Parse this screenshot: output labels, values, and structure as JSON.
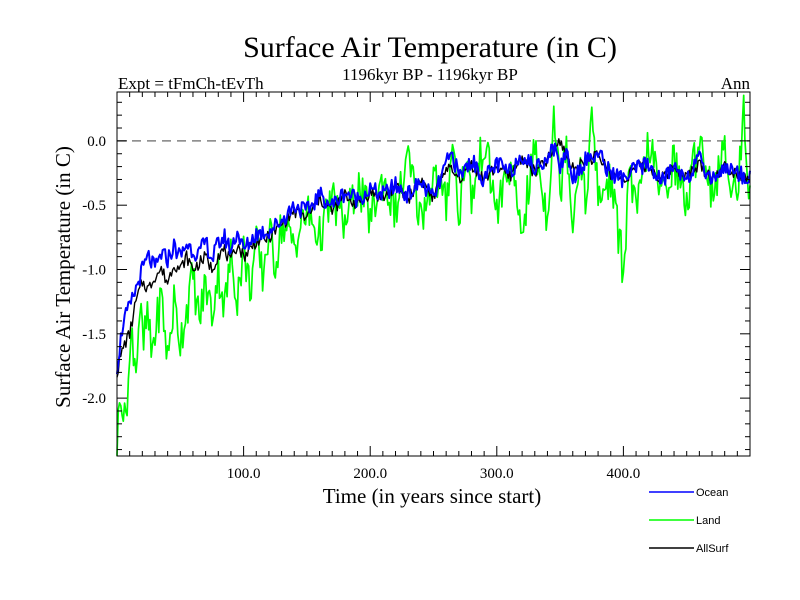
{
  "chart_data": {
    "type": "line",
    "title": "Surface Air Temperature (in C)",
    "subtitle_left": "Expt = tFmCh-tEvTh",
    "subtitle_center": "1196kyr BP - 1196kyr BP",
    "subtitle_right": "Ann",
    "xlabel": "Time (in years since start)",
    "ylabel": "Surface Air Temperature (in C)",
    "xlim": [
      0,
      500
    ],
    "ylim": [
      -2.45,
      0.38
    ],
    "xticks": [
      {
        "value": 100,
        "label": "100.0"
      },
      {
        "value": 200,
        "label": "200.0"
      },
      {
        "value": 300,
        "label": "300.0"
      },
      {
        "value": 400,
        "label": "400.0"
      }
    ],
    "yticks": [
      {
        "value": 0.0,
        "label": "0.0"
      },
      {
        "value": -0.5,
        "label": "-0.5"
      },
      {
        "value": -1.0,
        "label": "-1.0"
      },
      {
        "value": -1.5,
        "label": "-1.5"
      },
      {
        "value": -2.0,
        "label": "-2.0"
      }
    ],
    "reference_line": {
      "value": 0.0,
      "style": "dashed",
      "color": "#808080"
    },
    "legend_position": "bottom-right",
    "series": [
      {
        "name": "Ocean",
        "color": "#0000ff",
        "x": [
          0,
          5,
          10,
          15,
          20,
          25,
          30,
          35,
          40,
          45,
          50,
          55,
          60,
          65,
          70,
          75,
          80,
          85,
          90,
          95,
          100,
          110,
          120,
          130,
          140,
          150,
          160,
          170,
          180,
          190,
          200,
          210,
          220,
          230,
          240,
          250,
          260,
          265,
          270,
          280,
          290,
          300,
          310,
          320,
          330,
          340,
          345,
          350,
          355,
          360,
          370,
          380,
          390,
          400,
          410,
          420,
          430,
          440,
          450,
          460,
          470,
          480,
          490,
          499
        ],
        "y": [
          -1.75,
          -1.4,
          -1.3,
          -1.15,
          -1.0,
          -0.9,
          -1.0,
          -0.88,
          -0.92,
          -0.82,
          -0.9,
          -0.8,
          -0.85,
          -0.88,
          -0.78,
          -0.92,
          -0.8,
          -0.75,
          -0.85,
          -0.7,
          -0.85,
          -0.72,
          -0.7,
          -0.62,
          -0.5,
          -0.55,
          -0.42,
          -0.5,
          -0.4,
          -0.45,
          -0.38,
          -0.42,
          -0.35,
          -0.42,
          -0.32,
          -0.45,
          -0.18,
          -0.1,
          -0.28,
          -0.15,
          -0.3,
          -0.18,
          -0.25,
          -0.1,
          -0.22,
          -0.12,
          -0.05,
          -0.2,
          -0.08,
          -0.28,
          -0.15,
          -0.1,
          -0.25,
          -0.3,
          -0.22,
          -0.18,
          -0.32,
          -0.2,
          -0.28,
          -0.15,
          -0.3,
          -0.2,
          -0.25,
          -0.28
        ]
      },
      {
        "name": "Land",
        "color": "#00ff00",
        "x": [
          0,
          3,
          6,
          9,
          12,
          15,
          18,
          21,
          24,
          27,
          30,
          35,
          40,
          45,
          50,
          55,
          60,
          65,
          70,
          75,
          80,
          85,
          90,
          95,
          100,
          105,
          110,
          115,
          120,
          125,
          130,
          140,
          150,
          160,
          170,
          180,
          190,
          200,
          210,
          220,
          230,
          240,
          250,
          260,
          265,
          270,
          275,
          280,
          290,
          300,
          310,
          320,
          330,
          340,
          345,
          350,
          355,
          360,
          365,
          370,
          375,
          380,
          390,
          400,
          405,
          410,
          420,
          430,
          440,
          450,
          460,
          470,
          480,
          490,
          495,
          499
        ],
        "y": [
          -2.35,
          -1.9,
          -2.2,
          -1.85,
          -1.5,
          -1.75,
          -1.3,
          -1.6,
          -1.35,
          -1.65,
          -1.5,
          -1.2,
          -1.7,
          -1.25,
          -1.55,
          -1.3,
          -1.05,
          -1.4,
          -1.1,
          -1.35,
          -1.0,
          -1.3,
          -0.9,
          -1.2,
          -0.85,
          -1.15,
          -0.8,
          -1.05,
          -0.7,
          -0.95,
          -0.65,
          -0.8,
          -0.55,
          -0.75,
          -0.45,
          -0.65,
          -0.35,
          -0.6,
          -0.3,
          -0.55,
          -0.15,
          -0.6,
          -0.25,
          -0.5,
          0.05,
          -0.6,
          -0.1,
          -0.45,
          0.0,
          -0.55,
          -0.2,
          -0.7,
          -0.05,
          -0.6,
          0.25,
          -0.4,
          0.05,
          -0.65,
          -0.1,
          -0.5,
          0.2,
          -0.45,
          -0.3,
          -1.0,
          -0.2,
          -0.6,
          0.0,
          -0.45,
          -0.15,
          -0.5,
          0.05,
          -0.4,
          -0.1,
          -0.45,
          0.25,
          -0.35
        ]
      },
      {
        "name": "AllSurf",
        "color": "#000000",
        "x": [
          0,
          5,
          10,
          15,
          20,
          25,
          30,
          35,
          40,
          45,
          50,
          55,
          60,
          65,
          70,
          75,
          80,
          85,
          90,
          95,
          100,
          110,
          120,
          130,
          140,
          150,
          160,
          170,
          180,
          190,
          200,
          210,
          220,
          230,
          240,
          250,
          260,
          270,
          280,
          290,
          300,
          310,
          320,
          330,
          340,
          350,
          360,
          370,
          380,
          390,
          400,
          410,
          420,
          430,
          440,
          450,
          460,
          470,
          480,
          490,
          499
        ],
        "y": [
          -1.8,
          -1.6,
          -1.5,
          -1.25,
          -1.1,
          -1.15,
          -1.05,
          -1.0,
          -1.1,
          -0.95,
          -1.0,
          -0.9,
          -1.0,
          -0.95,
          -0.9,
          -1.0,
          -0.88,
          -0.85,
          -0.95,
          -0.8,
          -0.9,
          -0.78,
          -0.75,
          -0.65,
          -0.55,
          -0.6,
          -0.45,
          -0.55,
          -0.42,
          -0.5,
          -0.4,
          -0.45,
          -0.35,
          -0.45,
          -0.3,
          -0.45,
          -0.2,
          -0.3,
          -0.18,
          -0.3,
          -0.2,
          -0.28,
          -0.12,
          -0.25,
          -0.15,
          0.0,
          -0.22,
          -0.15,
          -0.12,
          -0.25,
          -0.3,
          -0.2,
          -0.2,
          -0.3,
          -0.2,
          -0.28,
          -0.18,
          -0.3,
          -0.2,
          -0.25,
          -0.28
        ]
      }
    ]
  }
}
